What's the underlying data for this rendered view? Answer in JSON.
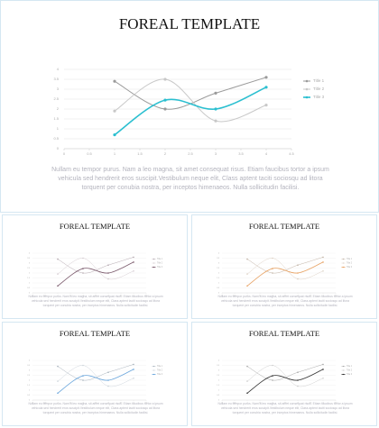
{
  "chart_data": [
    {
      "type": "line",
      "title": "FOREAL TEMPLATE",
      "caption": "Nullam eu tempor purus. Nam a leo magna, sit amet consequat risus. Etiam faucibus tortor a ipsum vehicula sed hendrerit eros suscipit.Vestibulum neque elit, Class aptent taciti sociosqu ad litora torquent per conubia nostra, per inceptos himenaeos. Nulla sollicitudin facilisi.",
      "x": [
        1,
        2,
        3,
        4
      ],
      "xlim": [
        0,
        4.5
      ],
      "xticks": [
        0,
        0.5,
        1,
        1.5,
        2,
        2.5,
        3,
        3.5,
        4,
        4.5
      ],
      "ylim": [
        0,
        4
      ],
      "yticks": [
        0,
        0.5,
        1,
        1.5,
        2,
        2.5,
        3,
        3.5,
        4
      ],
      "grid": true,
      "legend": "right",
      "series": [
        {
          "name": "Title 1",
          "color": "#9a9a9a",
          "values": [
            3.4,
            2,
            2.8,
            3.6
          ]
        },
        {
          "name": "Title 2",
          "color": "#c8c8c8",
          "values": [
            1.9,
            3.5,
            1.4,
            2.2
          ]
        },
        {
          "name": "Title 3",
          "color": "#2bbfd0",
          "values": [
            0.7,
            2.45,
            2,
            3.1
          ]
        }
      ]
    },
    {
      "type": "line",
      "title": "FOREAL TEMPLATE",
      "caption": "Nullam eu tempor purus. Nam a leo magna, sit amet consequat risus. Etiam faucibus tortor a ipsum vehicula sed hendrerit eros suscipit.Vestibulum neque elit, Class aptent taciti sociosqu ad litora torquent per conubia nostra, per inceptos himenaeos. Nulla sollicitudin facilisi.",
      "x": [
        1,
        2,
        3,
        4
      ],
      "xlim": [
        0,
        4.5
      ],
      "xticks": [
        0,
        0.5,
        1,
        1.5,
        2,
        2.5,
        3,
        3.5,
        4,
        4.5
      ],
      "ylim": [
        0,
        4
      ],
      "yticks": [
        0,
        0.5,
        1,
        1.5,
        2,
        2.5,
        3,
        3.5,
        4
      ],
      "grid": true,
      "legend": "right",
      "series": [
        {
          "name": "Title 1",
          "color": "#b5a9b0",
          "values": [
            3.4,
            2,
            2.8,
            3.6
          ]
        },
        {
          "name": "Title 2",
          "color": "#d6cdd2",
          "values": [
            1.9,
            3.5,
            1.4,
            2.2
          ]
        },
        {
          "name": "Title 3",
          "color": "#7b5a6c",
          "values": [
            0.7,
            2.45,
            2,
            3.1
          ]
        }
      ]
    },
    {
      "type": "line",
      "title": "FOREAL TEMPLATE",
      "caption": "Nullam eu tempor purus. Nam a leo magna, sit amet consequat risus. Etiam faucibus tortor a ipsum vehicula sed hendrerit eros suscipit.Vestibulum neque elit, Class aptent taciti sociosqu ad litora torquent per conubia nostra, per inceptos himenaeos. Nulla sollicitudin facilisi.",
      "x": [
        1,
        2,
        3,
        4
      ],
      "xlim": [
        0,
        4.5
      ],
      "xticks": [
        0,
        0.5,
        1,
        1.5,
        2,
        2.5,
        3,
        3.5,
        4,
        4.5
      ],
      "ylim": [
        0,
        4
      ],
      "yticks": [
        0,
        0.5,
        1,
        1.5,
        2,
        2.5,
        3,
        3.5,
        4
      ],
      "grid": true,
      "legend": "right",
      "series": [
        {
          "name": "Title 1",
          "color": "#c2b3a5",
          "values": [
            3.4,
            2,
            2.8,
            3.6
          ]
        },
        {
          "name": "Title 2",
          "color": "#ded2c6",
          "values": [
            1.9,
            3.5,
            1.4,
            2.2
          ]
        },
        {
          "name": "Title 3",
          "color": "#e8a263",
          "values": [
            0.7,
            2.45,
            2,
            3.1
          ]
        }
      ]
    },
    {
      "type": "line",
      "title": "FOREAL TEMPLATE",
      "caption": "Nullam eu tempor purus. Nam a leo magna, sit amet consequat risus. Etiam faucibus tortor a ipsum vehicula sed hendrerit eros suscipit.Vestibulum neque elit, Class aptent taciti sociosqu ad litora torquent per conubia nostra, per inceptos himenaeos. Nulla sollicitudin facilisi.",
      "x": [
        1,
        2,
        3,
        4
      ],
      "xlim": [
        0,
        4.5
      ],
      "xticks": [
        0,
        0.5,
        1,
        1.5,
        2,
        2.5,
        3,
        3.5,
        4,
        4.5
      ],
      "ylim": [
        0,
        4
      ],
      "yticks": [
        0,
        0.5,
        1,
        1.5,
        2,
        2.5,
        3,
        3.5,
        4
      ],
      "grid": true,
      "legend": "right",
      "series": [
        {
          "name": "Title 1",
          "color": "#a9b3bd",
          "values": [
            3.4,
            2,
            2.8,
            3.6
          ]
        },
        {
          "name": "Title 2",
          "color": "#cfd6dd",
          "values": [
            1.9,
            3.5,
            1.4,
            2.2
          ]
        },
        {
          "name": "Title 3",
          "color": "#6aa6dc",
          "values": [
            0.7,
            2.45,
            2,
            3.1
          ]
        }
      ]
    },
    {
      "type": "line",
      "title": "FOREAL TEMPLATE",
      "caption": "Nullam eu tempor purus. Nam a leo magna, sit amet consequat risus. Etiam faucibus tortor a ipsum vehicula sed hendrerit eros suscipit.Vestibulum neque elit, Class aptent taciti sociosqu ad litora torquent per conubia nostra, per inceptos himenaeos. Nulla sollicitudin facilisi.",
      "x": [
        1,
        2,
        3,
        4
      ],
      "xlim": [
        0,
        4.5
      ],
      "xticks": [
        0,
        0.5,
        1,
        1.5,
        2,
        2.5,
        3,
        3.5,
        4,
        4.5
      ],
      "ylim": [
        0,
        4
      ],
      "yticks": [
        0,
        0.5,
        1,
        1.5,
        2,
        2.5,
        3,
        3.5,
        4
      ],
      "grid": true,
      "legend": "right",
      "series": [
        {
          "name": "Title 1",
          "color": "#a8a8a8",
          "values": [
            3.4,
            2,
            2.8,
            3.6
          ]
        },
        {
          "name": "Title 2",
          "color": "#d0d0d0",
          "values": [
            1.9,
            3.5,
            1.4,
            2.2
          ]
        },
        {
          "name": "Title 3",
          "color": "#333333",
          "values": [
            0.7,
            2.45,
            2,
            3.1
          ]
        }
      ]
    }
  ]
}
